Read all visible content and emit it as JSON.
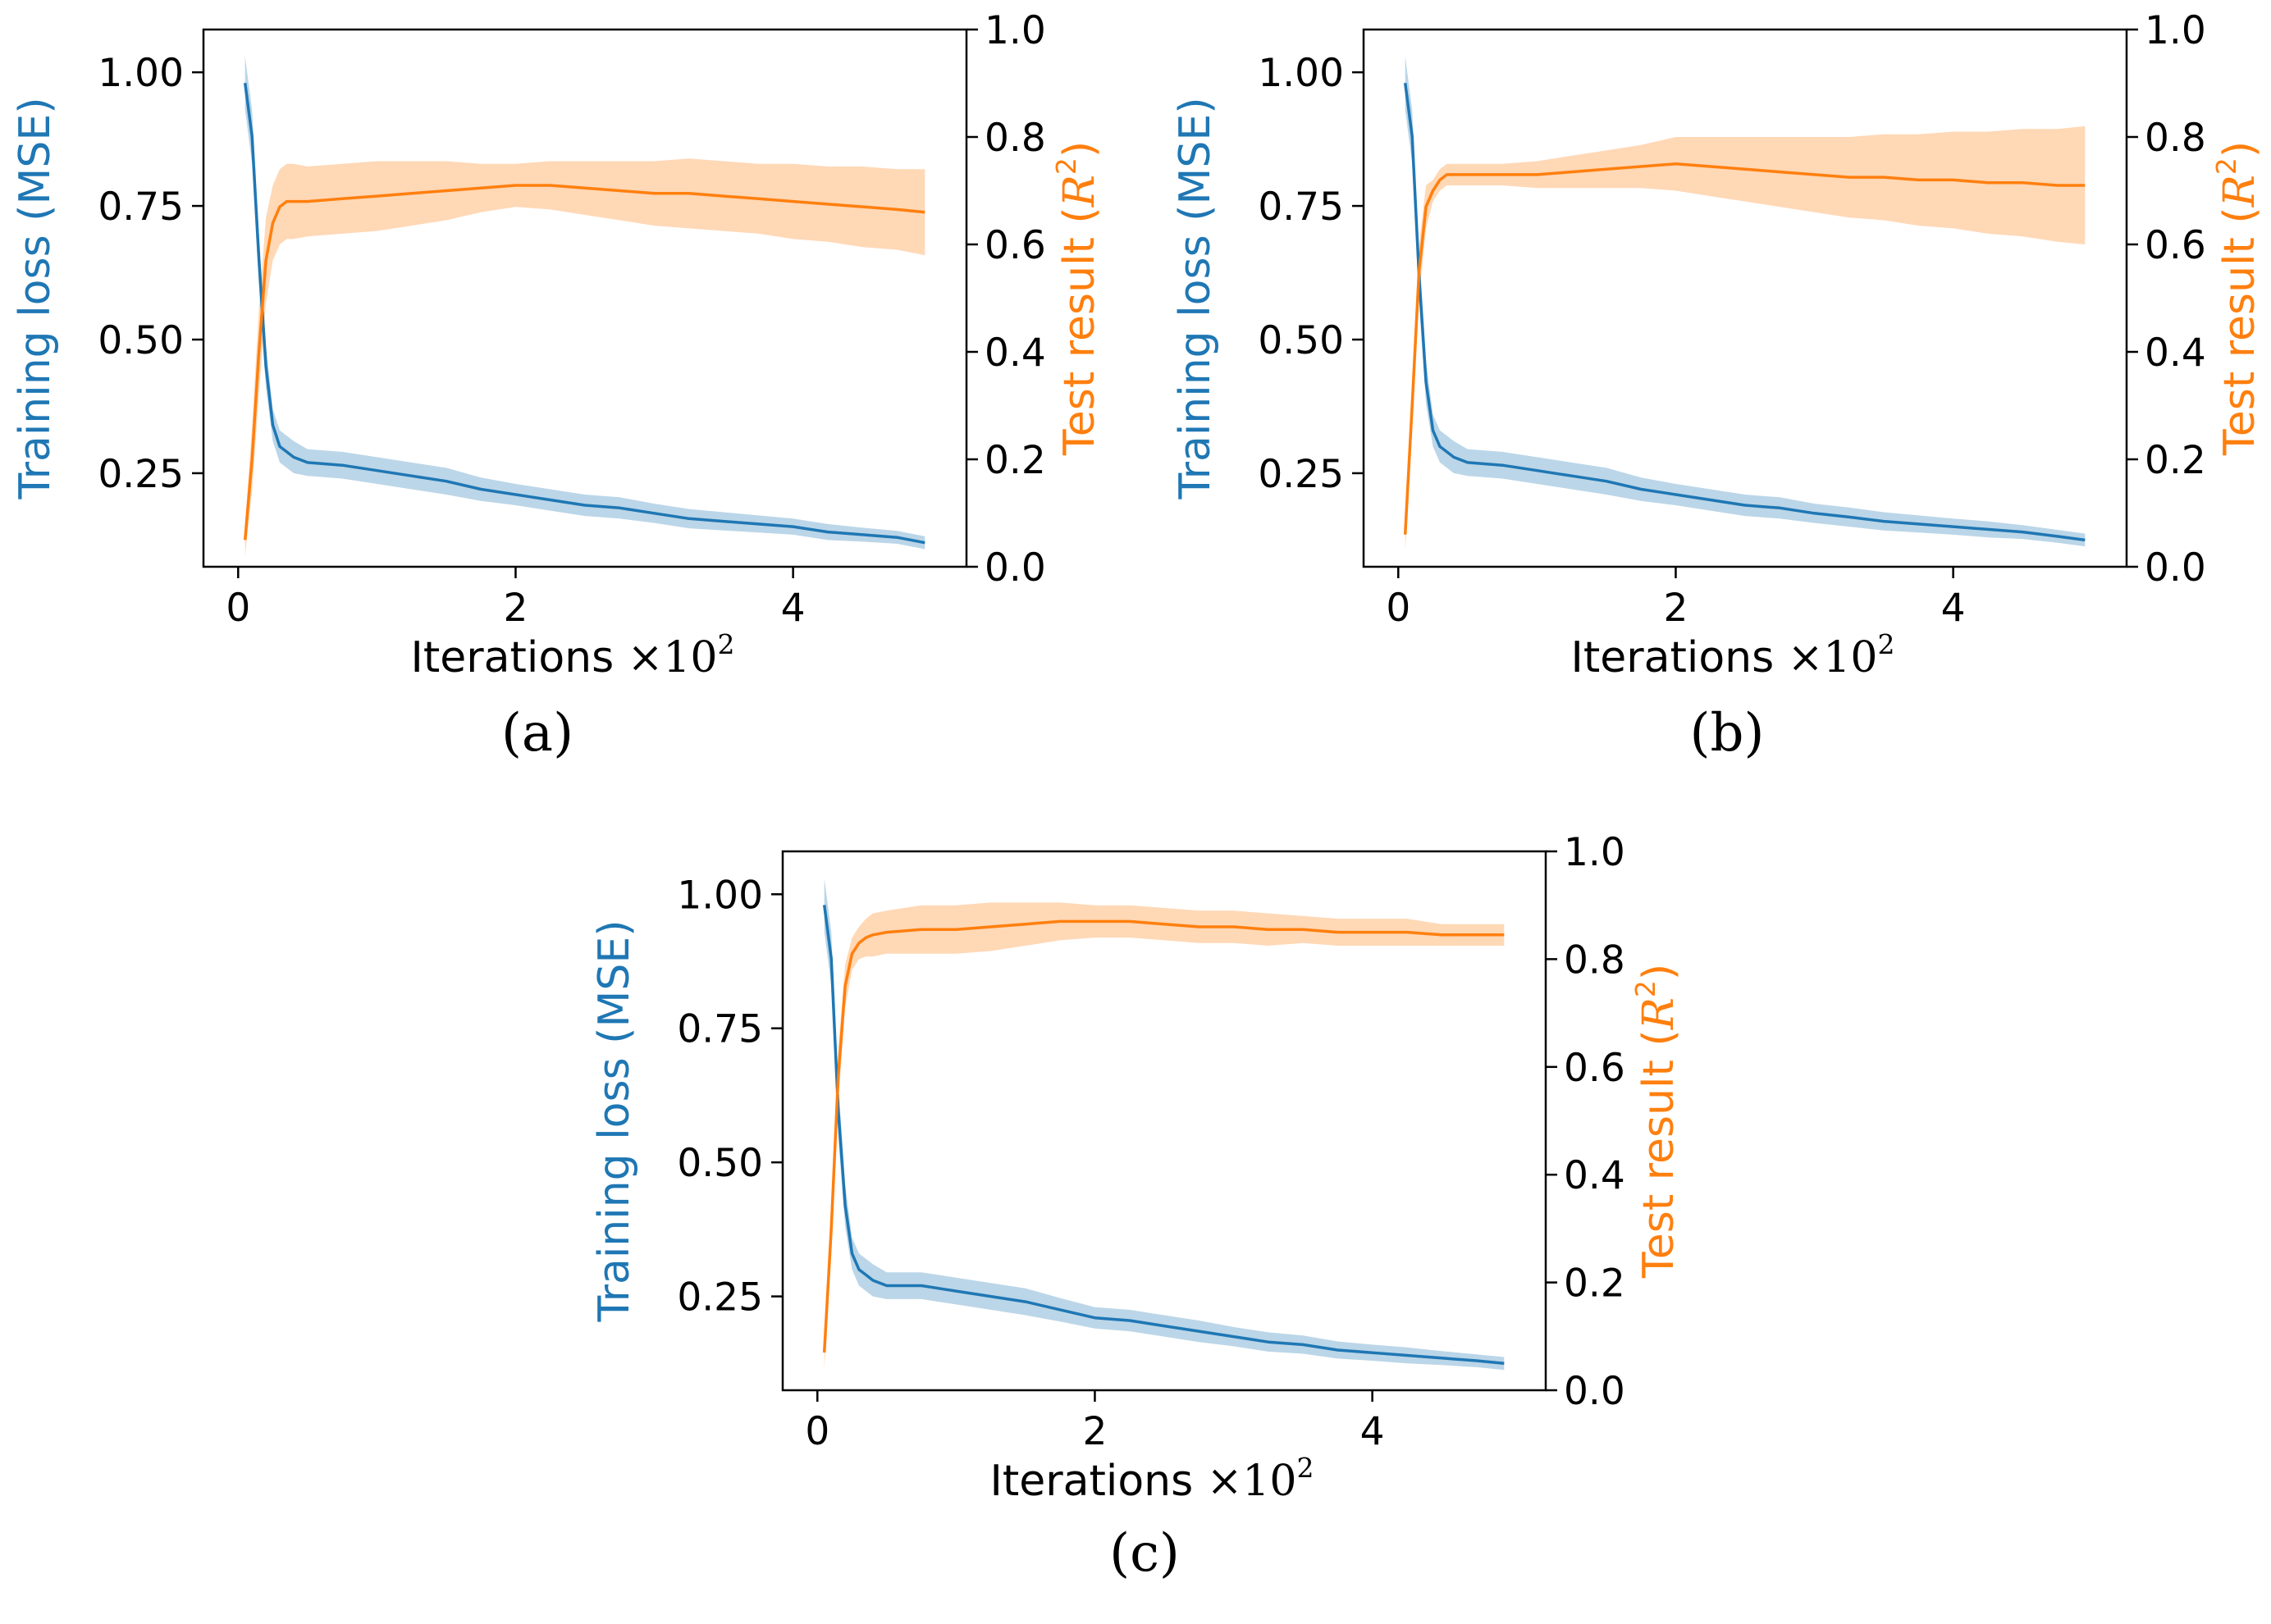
{
  "colors": {
    "loss": "#1f77b4",
    "test": "#ff7f0e",
    "axis": "#000000"
  },
  "chart_data": [
    {
      "type": "line",
      "panel_label": "(a)",
      "xlabel": {
        "text": "Iterations",
        "times": "×10",
        "exp": "2"
      },
      "ylabel_left": "Training loss (MSE)",
      "ylabel_right": {
        "text": "Test result (",
        "sym": "R",
        "exp": "2",
        "close": ")"
      },
      "xlim": [
        -0.25,
        5.25
      ],
      "ylim_left": [
        0.075,
        1.08
      ],
      "ylim_right": [
        0.0,
        1.0
      ],
      "xticks": [
        0,
        2,
        4
      ],
      "xtick_labels": [
        "0",
        "2",
        "4"
      ],
      "yticks_left": [
        0.25,
        0.5,
        0.75,
        1.0
      ],
      "ytick_labels_left": [
        "0.25",
        "0.50",
        "0.75",
        "1.00"
      ],
      "yticks_right": [
        0.0,
        0.2,
        0.4,
        0.6,
        0.8,
        1.0
      ],
      "ytick_labels_right": [
        "0.0",
        "0.2",
        "0.4",
        "0.6",
        "0.8",
        "1.0"
      ],
      "series": [
        {
          "axis": "left",
          "x": [
            0.05,
            0.1,
            0.15,
            0.2,
            0.25,
            0.3,
            0.35,
            0.4,
            0.5,
            0.75,
            1.0,
            1.25,
            1.5,
            1.75,
            2.0,
            2.25,
            2.5,
            2.75,
            3.0,
            3.25,
            3.5,
            3.75,
            4.0,
            4.25,
            4.5,
            4.75,
            4.95
          ],
          "y": [
            0.98,
            0.88,
            0.65,
            0.45,
            0.34,
            0.3,
            0.29,
            0.28,
            0.27,
            0.265,
            0.255,
            0.245,
            0.235,
            0.22,
            0.21,
            0.2,
            0.19,
            0.185,
            0.175,
            0.165,
            0.16,
            0.155,
            0.15,
            0.14,
            0.135,
            0.13,
            0.12
          ],
          "spread": [
            0.05,
            0.05,
            0.05,
            0.04,
            0.03,
            0.03,
            0.03,
            0.03,
            0.025,
            0.025,
            0.025,
            0.025,
            0.025,
            0.022,
            0.02,
            0.02,
            0.02,
            0.02,
            0.018,
            0.018,
            0.017,
            0.016,
            0.015,
            0.015,
            0.013,
            0.012,
            0.012
          ]
        },
        {
          "axis": "right",
          "x": [
            0.05,
            0.1,
            0.15,
            0.2,
            0.25,
            0.3,
            0.35,
            0.4,
            0.5,
            0.75,
            1.0,
            1.25,
            1.5,
            1.75,
            2.0,
            2.25,
            2.5,
            2.75,
            3.0,
            3.25,
            3.5,
            3.75,
            4.0,
            4.25,
            4.5,
            4.75,
            4.95
          ],
          "y": [
            0.05,
            0.2,
            0.4,
            0.57,
            0.64,
            0.67,
            0.68,
            0.68,
            0.68,
            0.685,
            0.69,
            0.695,
            0.7,
            0.705,
            0.71,
            0.71,
            0.705,
            0.7,
            0.695,
            0.695,
            0.69,
            0.685,
            0.68,
            0.675,
            0.67,
            0.665,
            0.66
          ],
          "spread": [
            0.03,
            0.06,
            0.08,
            0.08,
            0.07,
            0.07,
            0.07,
            0.07,
            0.065,
            0.065,
            0.065,
            0.06,
            0.055,
            0.045,
            0.04,
            0.045,
            0.05,
            0.055,
            0.06,
            0.065,
            0.065,
            0.065,
            0.07,
            0.07,
            0.075,
            0.075,
            0.08
          ]
        }
      ]
    },
    {
      "type": "line",
      "panel_label": "(b)",
      "xlabel": {
        "text": "Iterations",
        "times": "×10",
        "exp": "2"
      },
      "ylabel_left": "Training loss (MSE)",
      "ylabel_right": {
        "text": "Test result (",
        "sym": "R",
        "exp": "2",
        "close": ")"
      },
      "xlim": [
        -0.25,
        5.25
      ],
      "ylim_left": [
        0.075,
        1.08
      ],
      "ylim_right": [
        0.0,
        1.0
      ],
      "xticks": [
        0,
        2,
        4
      ],
      "xtick_labels": [
        "0",
        "2",
        "4"
      ],
      "yticks_left": [
        0.25,
        0.5,
        0.75,
        1.0
      ],
      "ytick_labels_left": [
        "0.25",
        "0.50",
        "0.75",
        "1.00"
      ],
      "yticks_right": [
        0.0,
        0.2,
        0.4,
        0.6,
        0.8,
        1.0
      ],
      "ytick_labels_right": [
        "0.0",
        "0.2",
        "0.4",
        "0.6",
        "0.8",
        "1.0"
      ],
      "series": [
        {
          "axis": "left",
          "x": [
            0.05,
            0.1,
            0.15,
            0.2,
            0.25,
            0.3,
            0.35,
            0.4,
            0.5,
            0.75,
            1.0,
            1.25,
            1.5,
            1.75,
            2.0,
            2.25,
            2.5,
            2.75,
            3.0,
            3.25,
            3.5,
            3.75,
            4.0,
            4.25,
            4.5,
            4.75,
            4.95
          ],
          "y": [
            0.98,
            0.88,
            0.62,
            0.42,
            0.33,
            0.3,
            0.29,
            0.28,
            0.27,
            0.265,
            0.255,
            0.245,
            0.235,
            0.22,
            0.21,
            0.2,
            0.19,
            0.185,
            0.175,
            0.168,
            0.16,
            0.155,
            0.15,
            0.145,
            0.14,
            0.132,
            0.125
          ],
          "spread": [
            0.05,
            0.05,
            0.05,
            0.04,
            0.03,
            0.03,
            0.03,
            0.03,
            0.025,
            0.025,
            0.025,
            0.025,
            0.025,
            0.022,
            0.02,
            0.02,
            0.02,
            0.02,
            0.018,
            0.018,
            0.017,
            0.016,
            0.015,
            0.015,
            0.013,
            0.012,
            0.012
          ]
        },
        {
          "axis": "right",
          "x": [
            0.05,
            0.1,
            0.15,
            0.2,
            0.25,
            0.3,
            0.35,
            0.4,
            0.5,
            0.75,
            1.0,
            1.25,
            1.5,
            1.75,
            2.0,
            2.25,
            2.5,
            2.75,
            3.0,
            3.25,
            3.5,
            3.75,
            4.0,
            4.25,
            4.5,
            4.75,
            4.95
          ],
          "y": [
            0.06,
            0.3,
            0.55,
            0.67,
            0.7,
            0.72,
            0.73,
            0.73,
            0.73,
            0.73,
            0.73,
            0.735,
            0.74,
            0.745,
            0.75,
            0.745,
            0.74,
            0.735,
            0.73,
            0.725,
            0.725,
            0.72,
            0.72,
            0.715,
            0.715,
            0.71,
            0.71
          ],
          "spread": [
            0.03,
            0.05,
            0.05,
            0.04,
            0.02,
            0.02,
            0.02,
            0.02,
            0.02,
            0.02,
            0.025,
            0.03,
            0.035,
            0.04,
            0.05,
            0.055,
            0.06,
            0.065,
            0.07,
            0.075,
            0.08,
            0.085,
            0.09,
            0.095,
            0.1,
            0.105,
            0.11
          ]
        }
      ]
    },
    {
      "type": "line",
      "panel_label": "(c)",
      "xlabel": {
        "text": "Iterations",
        "times": "×10",
        "exp": "2"
      },
      "ylabel_left": "Training loss (MSE)",
      "ylabel_right": {
        "text": "Test result (",
        "sym": "R",
        "exp": "2",
        "close": ")"
      },
      "xlim": [
        -0.25,
        5.25
      ],
      "ylim_left": [
        0.075,
        1.08
      ],
      "ylim_right": [
        0.0,
        1.0
      ],
      "xticks": [
        0,
        2,
        4
      ],
      "xtick_labels": [
        "0",
        "2",
        "4"
      ],
      "yticks_left": [
        0.25,
        0.5,
        0.75,
        1.0
      ],
      "ytick_labels_left": [
        "0.25",
        "0.50",
        "0.75",
        "1.00"
      ],
      "yticks_right": [
        0.0,
        0.2,
        0.4,
        0.6,
        0.8,
        1.0
      ],
      "ytick_labels_right": [
        "0.0",
        "0.2",
        "0.4",
        "0.6",
        "0.8",
        "1.0"
      ],
      "series": [
        {
          "axis": "left",
          "x": [
            0.05,
            0.1,
            0.15,
            0.2,
            0.25,
            0.3,
            0.35,
            0.4,
            0.5,
            0.75,
            1.0,
            1.25,
            1.5,
            1.75,
            2.0,
            2.25,
            2.5,
            2.75,
            3.0,
            3.25,
            3.5,
            3.75,
            4.0,
            4.25,
            4.5,
            4.75,
            4.95
          ],
          "y": [
            0.98,
            0.88,
            0.6,
            0.42,
            0.33,
            0.3,
            0.29,
            0.28,
            0.27,
            0.27,
            0.26,
            0.25,
            0.24,
            0.225,
            0.21,
            0.205,
            0.195,
            0.185,
            0.175,
            0.165,
            0.16,
            0.15,
            0.145,
            0.14,
            0.135,
            0.13,
            0.125
          ],
          "spread": [
            0.05,
            0.05,
            0.05,
            0.04,
            0.03,
            0.03,
            0.03,
            0.03,
            0.025,
            0.025,
            0.025,
            0.025,
            0.025,
            0.022,
            0.02,
            0.02,
            0.02,
            0.02,
            0.018,
            0.018,
            0.017,
            0.016,
            0.015,
            0.015,
            0.013,
            0.012,
            0.012
          ]
        },
        {
          "axis": "right",
          "x": [
            0.05,
            0.1,
            0.15,
            0.2,
            0.25,
            0.3,
            0.35,
            0.4,
            0.5,
            0.75,
            1.0,
            1.25,
            1.5,
            1.75,
            2.0,
            2.25,
            2.5,
            2.75,
            3.0,
            3.25,
            3.5,
            3.75,
            4.0,
            4.25,
            4.5,
            4.75,
            4.95
          ],
          "y": [
            0.07,
            0.3,
            0.58,
            0.75,
            0.81,
            0.83,
            0.84,
            0.845,
            0.85,
            0.855,
            0.855,
            0.86,
            0.865,
            0.87,
            0.87,
            0.87,
            0.865,
            0.86,
            0.86,
            0.855,
            0.855,
            0.85,
            0.85,
            0.85,
            0.845,
            0.845,
            0.845
          ],
          "spread": [
            0.03,
            0.05,
            0.05,
            0.04,
            0.03,
            0.03,
            0.035,
            0.04,
            0.04,
            0.045,
            0.045,
            0.045,
            0.04,
            0.035,
            0.03,
            0.03,
            0.03,
            0.03,
            0.03,
            0.03,
            0.025,
            0.025,
            0.025,
            0.025,
            0.02,
            0.02,
            0.02
          ]
        }
      ]
    }
  ]
}
